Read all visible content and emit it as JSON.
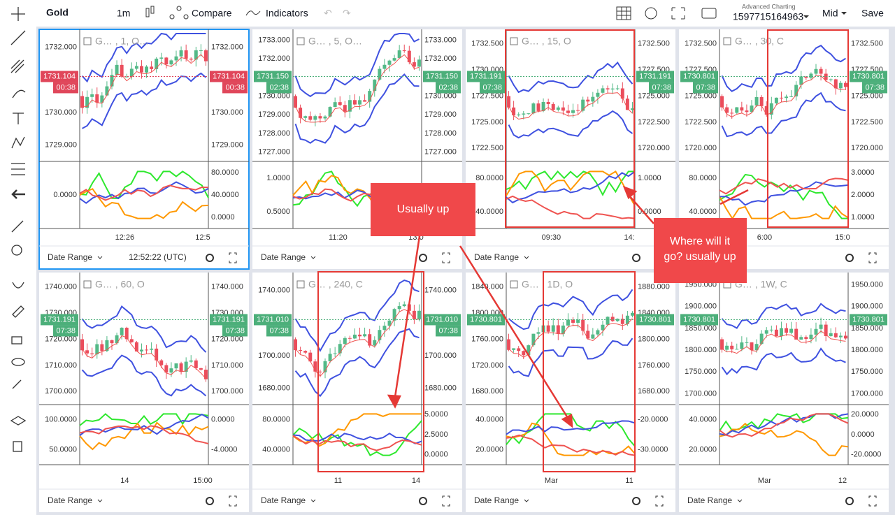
{
  "toolbar": {
    "symbol": "Gold",
    "interval": "1m",
    "compare": "Compare",
    "indicators": "Indicators",
    "brand": "Advanced Charting",
    "account": "1597715164963",
    "price_type": "Mid",
    "save": "Save"
  },
  "panels": [
    {
      "legend": "G… , 1, O…",
      "left_ticks": [
        "1732.000",
        "1731.000",
        "1730.000",
        "1729.000"
      ],
      "right_ticks": [
        "1732.000",
        "1731.000",
        "1730.000",
        "1729.000"
      ],
      "tag_price": "1731.104",
      "tag_time": "00:38",
      "tag_color": "#e0465a",
      "tag_left": true,
      "osc_left": [
        "0.0000"
      ],
      "osc_right": [
        "80.0000",
        "40.0000",
        "0.0000"
      ],
      "time_labels": [
        "12:26",
        "12:5"
      ],
      "footer": "Date Range",
      "clock": "12:52:22 (UTC)"
    },
    {
      "legend": "G… , 5, O…",
      "left_ticks": [
        "1733.000",
        "1732.000",
        "1731.000",
        "1730.000",
        "1729.000",
        "1728.000",
        "1727.000"
      ],
      "right_ticks": [
        "1733.000",
        "1732.000",
        "1731.000",
        "1730.000",
        "1729.000",
        "1728.000",
        "1727.000"
      ],
      "tag_price": "1731.150",
      "tag_time": "02:38",
      "tag_color": "#4caf7a",
      "tag_left": true,
      "osc_left": [
        "1.0000",
        "0.5000"
      ],
      "osc_right": [
        "80.0000"
      ],
      "time_labels": [
        "11:20",
        "13:0"
      ],
      "footer": "Date Range"
    },
    {
      "legend": "G… , 15, O",
      "left_ticks": [
        "1732.500",
        "1730.000",
        "1727.500",
        "1725.000",
        "1722.500"
      ],
      "right_ticks": [
        "1732.500",
        "1727.500",
        "1725.000",
        "1722.500",
        "1720.000"
      ],
      "tag_price": "1731.191",
      "tag_time": "07:38",
      "tag_color": "#4caf7a",
      "tag_left": true,
      "osc_left": [
        "80.0000",
        "40.0000"
      ],
      "osc_right": [
        "1.0000",
        "0.0000"
      ],
      "time_labels": [
        "09:30",
        "14:"
      ],
      "footer": "Date Range"
    },
    {
      "legend": "G… , 30, C",
      "left_ticks": [
        "1732.500",
        "1727.500",
        "1725.000",
        "1722.500",
        "1720.000"
      ],
      "right_ticks": [
        "1732.500",
        "1727.500",
        "1725.000",
        "1722.500",
        "1720.000"
      ],
      "tag_price": "1730.801",
      "tag_time": "07:38",
      "tag_color": "#4caf7a",
      "tag_left": true,
      "osc_left": [
        "80.0000",
        "40.0000"
      ],
      "osc_right": [
        "3.0000",
        "2.0000",
        "1.0000"
      ],
      "time_labels": [
        "6:00",
        "15:0"
      ],
      "footer": "Date Range"
    },
    {
      "legend": "G… , 60, O",
      "left_ticks": [
        "1740.000",
        "1730.000",
        "1720.000",
        "1710.000",
        "1700.000"
      ],
      "right_ticks": [
        "1740.000",
        "1730.000",
        "1720.000",
        "1710.000",
        "1700.000"
      ],
      "tag_price": "1731.191",
      "tag_time": "07:38",
      "tag_color": "#4caf7a",
      "tag_left": true,
      "osc_left": [
        "100.0000",
        "50.0000"
      ],
      "osc_right": [
        "0.0000",
        "-4.0000"
      ],
      "time_labels": [
        "14",
        "15:00"
      ],
      "footer": "Date Range"
    },
    {
      "legend": "G… , 240, C",
      "left_ticks": [
        "1740.000",
        "1720.000",
        "1700.000",
        "1680.000"
      ],
      "right_ticks": [
        "1740.000",
        "1720.000",
        "1700.000",
        "1680.000"
      ],
      "tag_price": "1731.010",
      "tag_time": "07:38",
      "tag_color": "#4caf7a",
      "tag_left": true,
      "osc_left": [
        "80.0000",
        "40.0000"
      ],
      "osc_right": [
        "5.0000",
        "2.5000",
        "0.0000"
      ],
      "time_labels": [
        "11",
        "14"
      ],
      "footer": "Date Range"
    },
    {
      "legend": "G… , 1D, O",
      "left_ticks": [
        "1840.000",
        "1800.000",
        "1760.000",
        "1720.000",
        "1680.000"
      ],
      "right_ticks": [
        "1880.000",
        "1840.000",
        "1800.000",
        "1760.000",
        "1680.000"
      ],
      "tag_price": "1730.801",
      "tag_color": "#4caf7a",
      "tag_left": true,
      "osc_left": [
        "40.0000",
        "20.0000"
      ],
      "osc_right": [
        "-20.0000",
        "-30.0000"
      ],
      "time_labels": [
        "Mar",
        "11"
      ],
      "footer": "Date Range"
    },
    {
      "legend": "G… , 1W, C",
      "left_ticks": [
        "1950.000",
        "1900.000",
        "1850.000",
        "1800.000",
        "1750.000",
        "1700.000"
      ],
      "right_ticks": [
        "1950.000",
        "1900.000",
        "1850.000",
        "1800.000",
        "1750.000",
        "1700.000"
      ],
      "tag_price": "1730.801",
      "tag_color": "#4caf7a",
      "tag_left": true,
      "osc_left": [
        "40.0000",
        "20.0000"
      ],
      "osc_right": [
        "20.0000",
        "0.0000",
        "-20.0000"
      ],
      "time_labels": [
        "Mar",
        "12"
      ],
      "footer": "Date Range"
    }
  ],
  "annotations": [
    "Usually up",
    "Where will it go? usually up"
  ]
}
